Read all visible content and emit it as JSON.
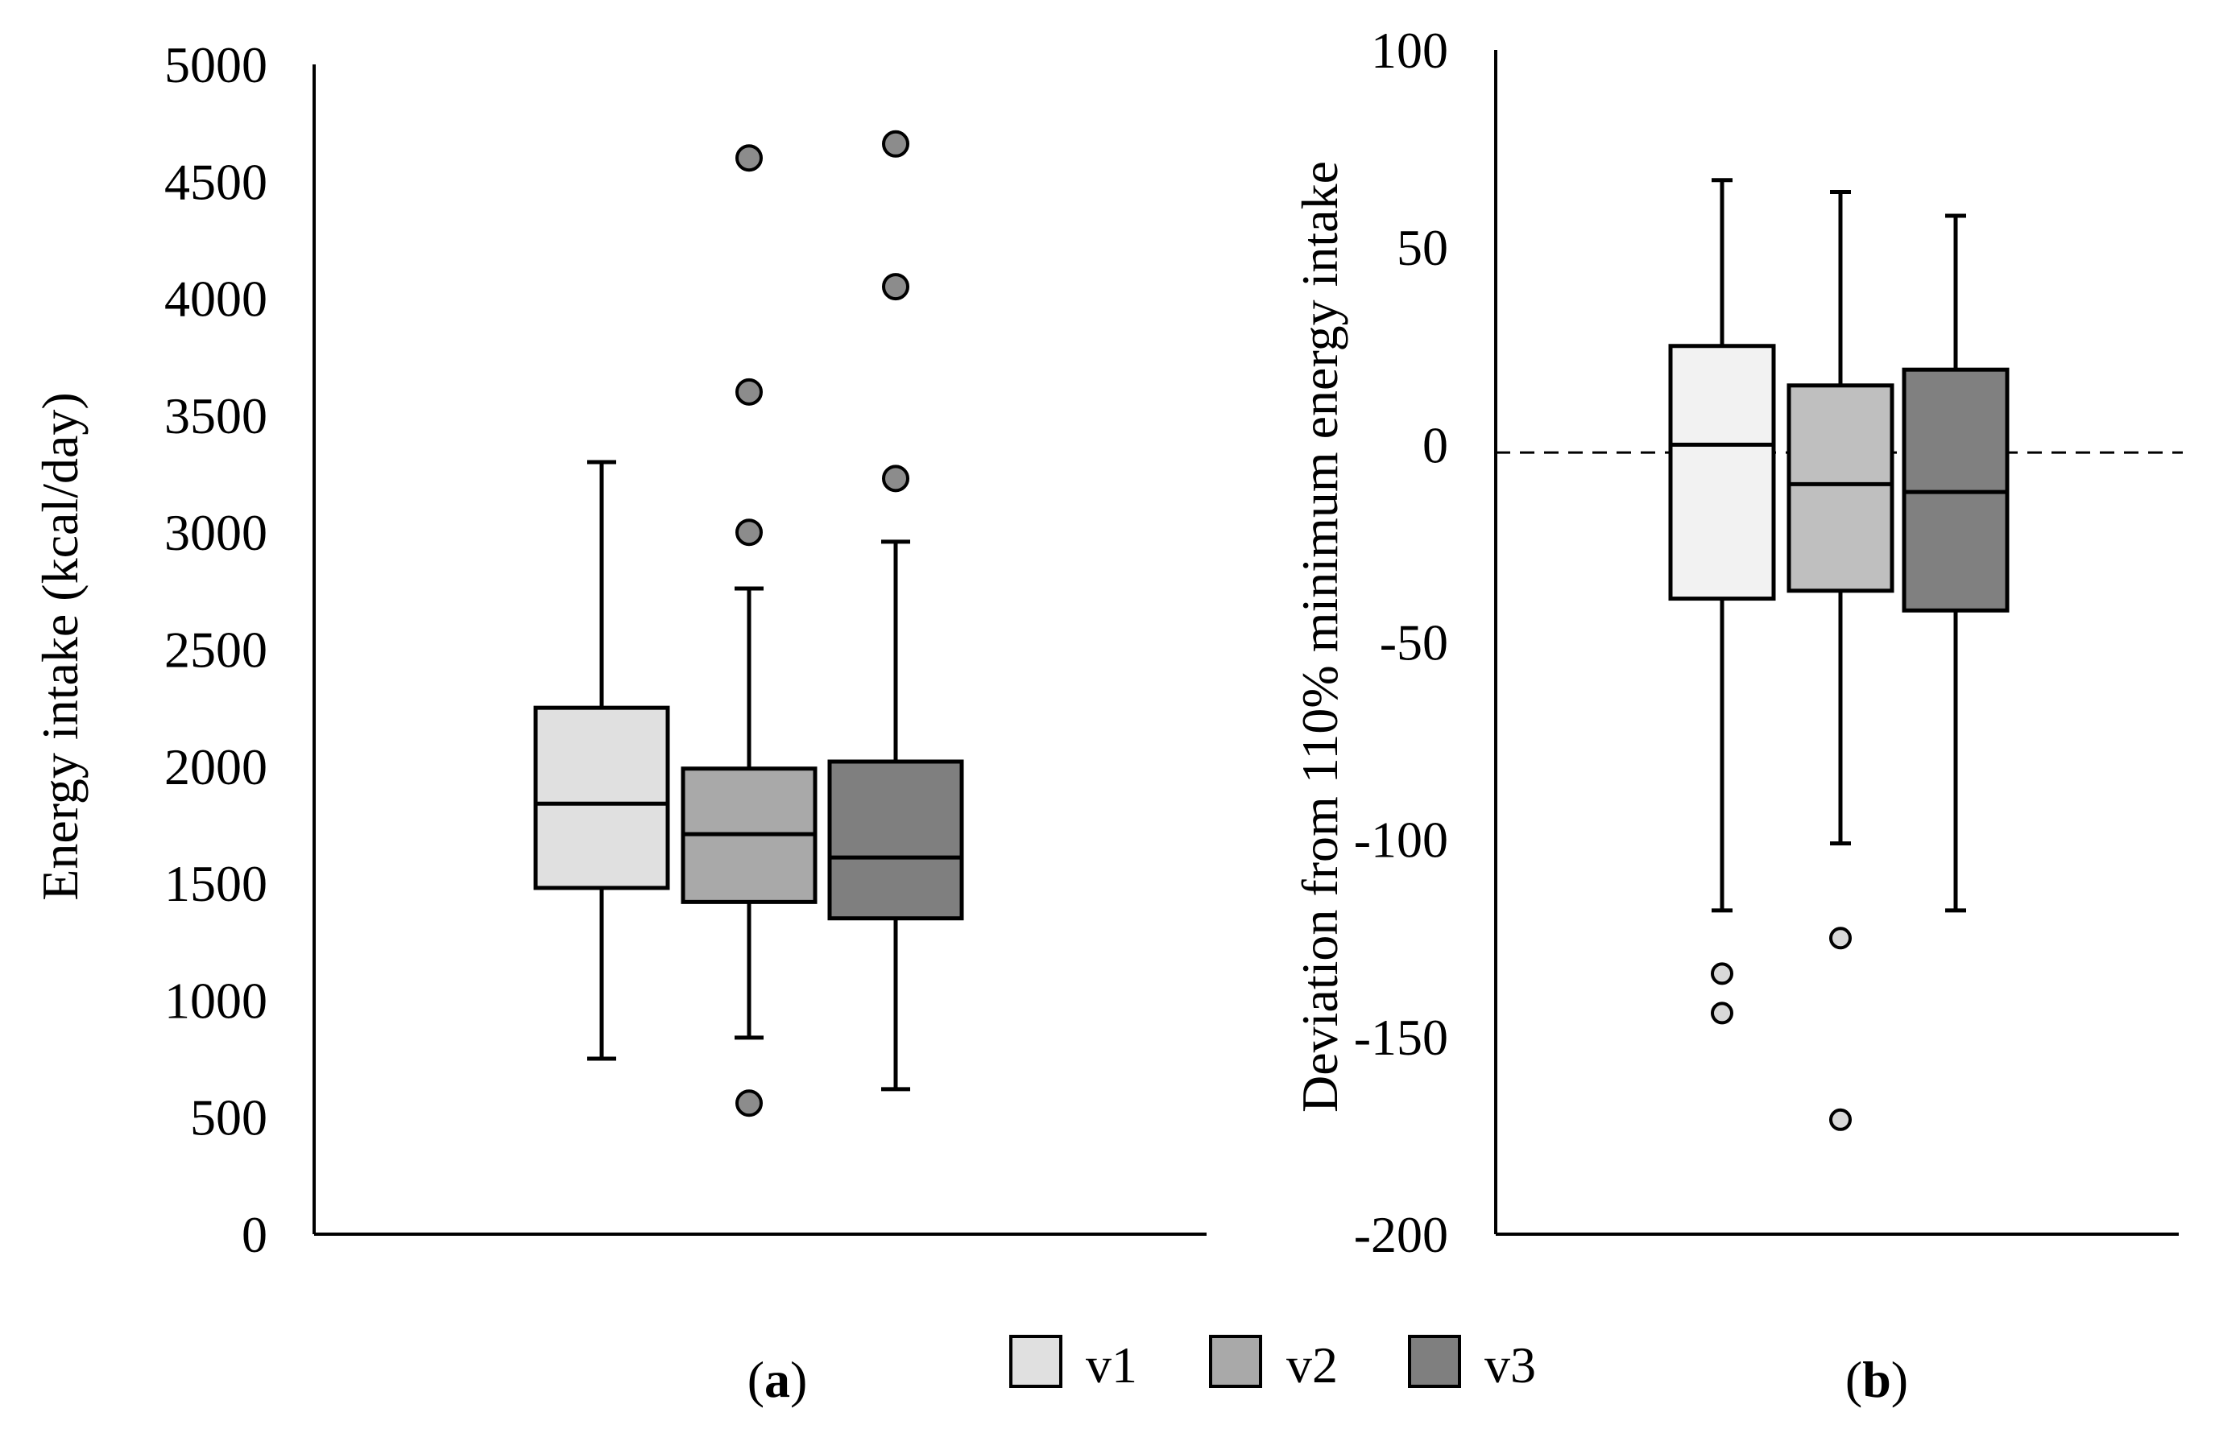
{
  "colors": {
    "v1": "#e0e0e0",
    "v2": "#a9a9a9",
    "v3": "#7f7f7f",
    "v1_b": "#f2f2f2",
    "v2_b": "#bfbfbf",
    "v3_b": "#808080",
    "outlier_a": "#8c8c8c",
    "outlier_b": "#d9d9d9"
  },
  "legend": {
    "items": [
      {
        "name": "v1",
        "label": "v1"
      },
      {
        "name": "v2",
        "label": "v2"
      },
      {
        "name": "v3",
        "label": "v3"
      }
    ]
  },
  "chart_data": [
    {
      "type": "box",
      "panel": "a",
      "panel_label_open": "(",
      "panel_label_letter": "a",
      "panel_label_close": ")",
      "ylabel": "Energy intake (kcal/day)",
      "ylim": [
        0,
        5000
      ],
      "yticks": [
        "0",
        "500",
        "1000",
        "1500",
        "2000",
        "2500",
        "3000",
        "3500",
        "4000",
        "4500",
        "5000"
      ],
      "ytick_values": [
        0,
        500,
        1000,
        1500,
        2000,
        2500,
        3000,
        3500,
        4000,
        4500,
        5000
      ],
      "reference_line": null,
      "series": [
        {
          "name": "v1",
          "whisker_low": 750,
          "q1": 1480,
          "median": 1840,
          "q3": 2250,
          "whisker_high": 3300,
          "outliers": []
        },
        {
          "name": "v2",
          "whisker_low": 840,
          "q1": 1420,
          "median": 1710,
          "q3": 1990,
          "whisker_high": 2760,
          "outliers": [
            560,
            3000,
            3600,
            4600
          ]
        },
        {
          "name": "v3",
          "whisker_low": 620,
          "q1": 1350,
          "median": 1610,
          "q3": 2020,
          "whisker_high": 2960,
          "outliers": [
            3230,
            4050,
            4660
          ]
        }
      ]
    },
    {
      "type": "box",
      "panel": "b",
      "panel_label_open": "(",
      "panel_label_letter": "b",
      "panel_label_close": ")",
      "ylabel": "Deviation from 110% minimum energy intake",
      "ylim": [
        -200,
        100
      ],
      "yticks": [
        "-200",
        "-150",
        "-100",
        "-50",
        "0",
        "50",
        "100"
      ],
      "ytick_values": [
        -200,
        -150,
        -100,
        -50,
        0,
        50,
        100
      ],
      "reference_line": -2,
      "series": [
        {
          "name": "v1",
          "whisker_low": -118,
          "q1": -39,
          "median": 0,
          "q3": 25,
          "whisker_high": 67,
          "outliers": [
            -134,
            -144
          ]
        },
        {
          "name": "v2",
          "whisker_low": -101,
          "q1": -37,
          "median": -10,
          "q3": 15,
          "whisker_high": 64,
          "outliers": [
            -125,
            -171
          ]
        },
        {
          "name": "v3",
          "whisker_low": -118,
          "q1": -42,
          "median": -12,
          "q3": 19,
          "whisker_high": 58,
          "outliers": []
        }
      ]
    }
  ]
}
